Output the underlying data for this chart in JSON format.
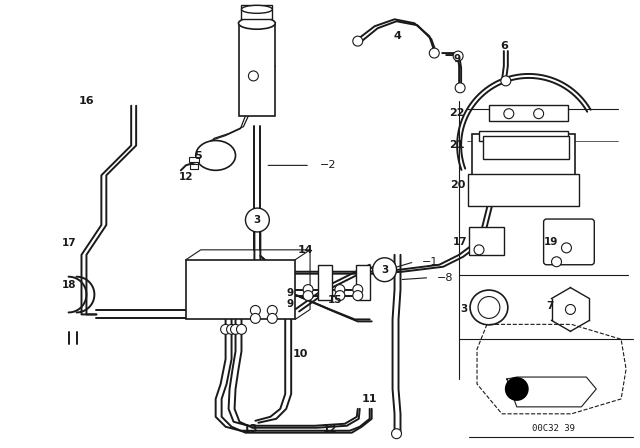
{
  "bg_color": "#ffffff",
  "lc": "#1a1a1a",
  "fig_width": 6.4,
  "fig_height": 4.48,
  "dpi": 100,
  "diagram_code": "00C32 39"
}
